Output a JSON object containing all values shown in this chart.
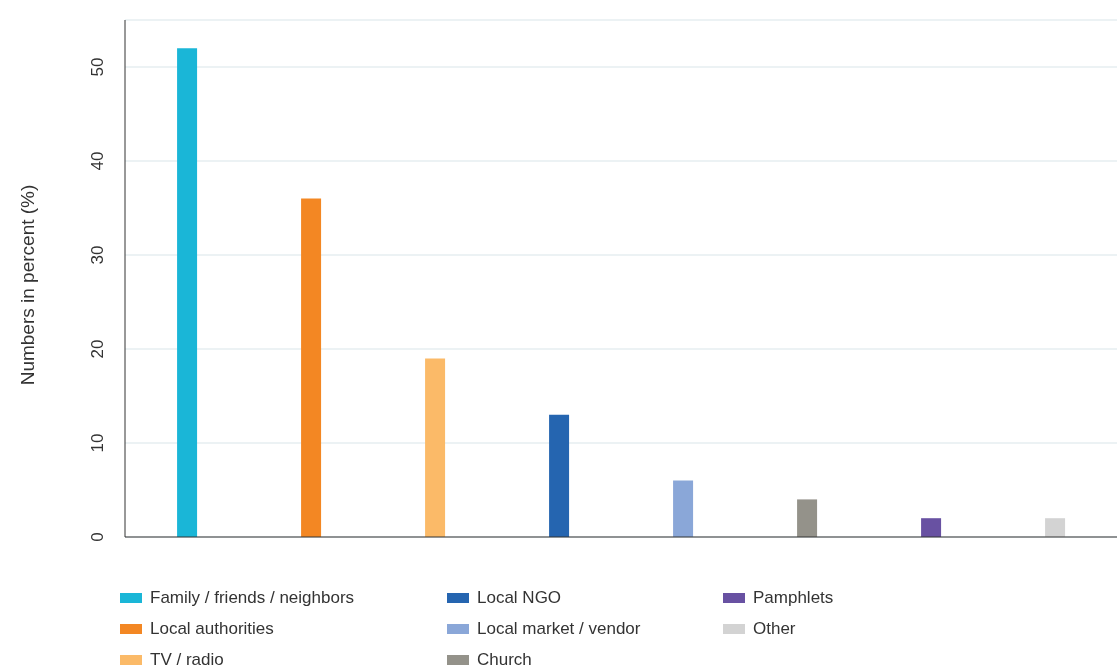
{
  "chart_data": {
    "type": "bar",
    "ylabel": "Numbers in percent (%)",
    "categories": [
      null,
      null,
      null,
      null,
      null,
      null,
      null,
      null
    ],
    "stacked": true,
    "series": [
      {
        "name": "Family / friends / neighbors",
        "color": "#1ab6d7",
        "values": [
          52,
          null,
          null,
          null,
          null,
          null,
          null,
          null
        ]
      },
      {
        "name": "Local authorities",
        "color": "#f38723",
        "values": [
          null,
          36,
          null,
          null,
          null,
          null,
          null,
          null
        ]
      },
      {
        "name": "TV / radio",
        "color": "#fbba68",
        "values": [
          null,
          null,
          19,
          null,
          null,
          null,
          null,
          null
        ]
      },
      {
        "name": "Local NGO",
        "color": "#2565b0",
        "values": [
          null,
          null,
          null,
          13,
          null,
          null,
          null,
          null
        ]
      },
      {
        "name": "Local market / vendor",
        "color": "#8aa7d8",
        "values": [
          null,
          null,
          null,
          null,
          6,
          null,
          null,
          null
        ]
      },
      {
        "name": "Church",
        "color": "#94928a",
        "values": [
          null,
          null,
          null,
          null,
          null,
          4,
          null,
          null
        ]
      },
      {
        "name": "Pamphlets",
        "color": "#6851a2",
        "values": [
          null,
          null,
          null,
          null,
          null,
          null,
          2,
          null
        ]
      },
      {
        "name": "Other",
        "color": "#d3d3d3",
        "values": [
          null,
          null,
          null,
          null,
          null,
          null,
          null,
          2
        ]
      }
    ],
    "ylim": [
      0,
      55
    ],
    "yticks": [
      0,
      10,
      20,
      30,
      40,
      50
    ],
    "grid": "y",
    "legend": "bottom"
  }
}
